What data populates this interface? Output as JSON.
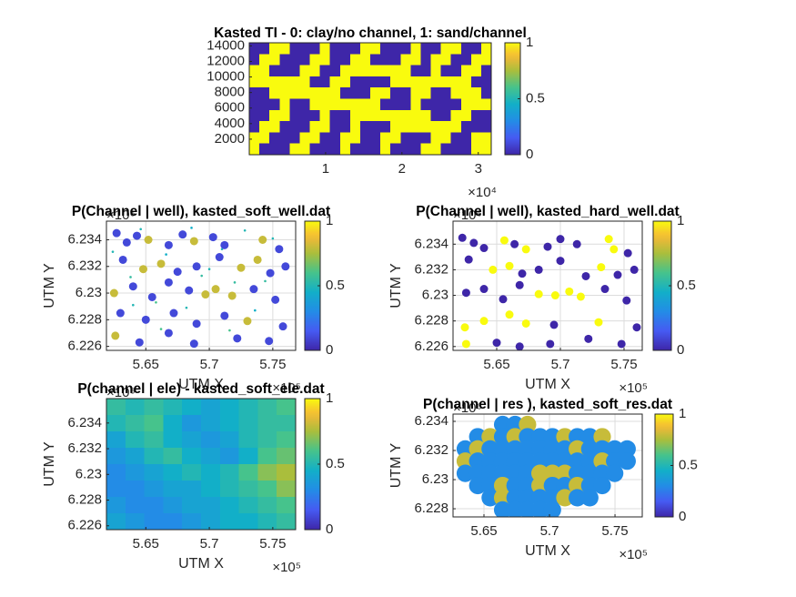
{
  "chart_data": [
    {
      "type": "heatmap",
      "title": "Kasted TI - 0: clay/no channel, 1: sand/channel",
      "colormap": "parula",
      "grid": false,
      "xlim": [
        0,
        3.17
      ],
      "ylim": [
        0,
        14400
      ],
      "xticks": [
        1,
        2,
        3
      ],
      "yticks": [
        2000,
        4000,
        6000,
        8000,
        10000,
        12000,
        14000
      ],
      "x_exponent": "×10⁴",
      "clim": [
        0,
        1
      ],
      "cticks": [
        0,
        0.5,
        1
      ],
      "z": [
        [
          0,
          0,
          1,
          1,
          0,
          0,
          0,
          1,
          0,
          0,
          0,
          1,
          1,
          0,
          0,
          0,
          1,
          0,
          0,
          1,
          1,
          0,
          0,
          1
        ],
        [
          0,
          1,
          1,
          0,
          0,
          0,
          1,
          1,
          0,
          0,
          1,
          1,
          0,
          0,
          0,
          1,
          1,
          0,
          1,
          1,
          0,
          0,
          1,
          1
        ],
        [
          1,
          1,
          0,
          0,
          0,
          1,
          1,
          0,
          0,
          1,
          1,
          1,
          1,
          1,
          1,
          1,
          0,
          0,
          1,
          0,
          0,
          1,
          1,
          0
        ],
        [
          1,
          1,
          1,
          1,
          1,
          1,
          0,
          0,
          1,
          1,
          0,
          0,
          0,
          0,
          1,
          1,
          1,
          1,
          1,
          1,
          1,
          1,
          0,
          0
        ],
        [
          0,
          0,
          1,
          1,
          1,
          1,
          1,
          1,
          1,
          0,
          0,
          0,
          1,
          1,
          0,
          0,
          1,
          1,
          0,
          0,
          1,
          1,
          1,
          0
        ],
        [
          0,
          0,
          0,
          1,
          0,
          0,
          1,
          1,
          1,
          1,
          1,
          1,
          1,
          0,
          0,
          0,
          1,
          0,
          0,
          0,
          0,
          1,
          1,
          1
        ],
        [
          0,
          0,
          1,
          1,
          0,
          0,
          0,
          1,
          0,
          0,
          1,
          1,
          1,
          1,
          1,
          1,
          1,
          1,
          0,
          0,
          1,
          1,
          0,
          0
        ],
        [
          0,
          1,
          1,
          0,
          0,
          0,
          1,
          1,
          0,
          0,
          1,
          0,
          0,
          0,
          1,
          1,
          1,
          1,
          1,
          1,
          1,
          0,
          0,
          0
        ],
        [
          1,
          1,
          0,
          0,
          0,
          1,
          1,
          0,
          0,
          1,
          1,
          0,
          0,
          1,
          1,
          0,
          0,
          0,
          1,
          1,
          0,
          0,
          1,
          1
        ],
        [
          1,
          0,
          0,
          0,
          1,
          1,
          0,
          0,
          0,
          1,
          0,
          0,
          0,
          1,
          0,
          0,
          0,
          1,
          1,
          0,
          0,
          0,
          1,
          1
        ]
      ]
    },
    {
      "type": "scatter",
      "title": "P(Channel | well), kasted_soft_well.dat",
      "colormap": "parula",
      "grid": true,
      "xlabel": "UTM X",
      "ylabel": "UTM Y",
      "x_exponent": "×10⁵",
      "y_exponent": "×10⁶",
      "xlim": [
        5.619,
        5.768
      ],
      "ylim": [
        6.2257,
        6.2354
      ],
      "xticks": [
        5.65,
        5.7,
        5.75
      ],
      "yticks": [
        6.226,
        6.228,
        6.23,
        6.232,
        6.234
      ],
      "clim": [
        0,
        1
      ],
      "cticks": [
        0,
        0.5,
        1
      ],
      "points": {
        "x": [
          5.627,
          5.635,
          5.643,
          5.652,
          5.668,
          5.679,
          5.688,
          5.703,
          5.712,
          5.742,
          5.755,
          5.76,
          5.632,
          5.648,
          5.662,
          5.675,
          5.69,
          5.708,
          5.725,
          5.738,
          5.748,
          5.625,
          5.64,
          5.655,
          5.668,
          5.684,
          5.697,
          5.705,
          5.718,
          5.735,
          5.752,
          5.63,
          5.65,
          5.672,
          5.69,
          5.712,
          5.73,
          5.758,
          5.626,
          5.645,
          5.668,
          5.688,
          5.722,
          5.747
        ],
        "y": [
          6.2345,
          6.2338,
          6.2343,
          6.234,
          6.2336,
          6.2344,
          6.2339,
          6.2342,
          6.2336,
          6.234,
          6.2333,
          6.232,
          6.2325,
          6.2318,
          6.2322,
          6.2316,
          6.232,
          6.2327,
          6.2319,
          6.2325,
          6.2315,
          6.23,
          6.2305,
          6.2297,
          6.2308,
          6.2302,
          6.2299,
          6.2303,
          6.2298,
          6.2303,
          6.2295,
          6.2285,
          6.228,
          6.2285,
          6.2277,
          6.2283,
          6.2279,
          6.2275,
          6.2268,
          6.2263,
          6.227,
          6.2262,
          6.2266,
          6.2264
        ],
        "values": [
          0.1,
          0.1,
          0.1,
          0.8,
          0.1,
          0.1,
          0.8,
          0.1,
          0.1,
          0.8,
          0.1,
          0.1,
          0.1,
          0.8,
          0.8,
          0.1,
          0.1,
          0.1,
          0.8,
          0.8,
          0.1,
          0.8,
          0.1,
          0.1,
          0.1,
          0.1,
          0.8,
          0.8,
          0.8,
          0.1,
          0.1,
          0.1,
          0.1,
          0.1,
          0.1,
          0.1,
          0.8,
          0.1,
          0.8,
          0.1,
          0.1,
          0.1,
          0.1,
          0.1
        ]
      },
      "small_points": {
        "x": [
          5.624,
          5.638,
          5.646,
          5.658,
          5.666,
          5.682,
          5.694,
          5.71,
          5.716,
          5.728,
          5.736,
          5.744,
          5.75,
          5.662,
          5.7,
          5.72,
          5.64,
          5.686
        ],
        "y": [
          6.2331,
          6.2312,
          6.2348,
          6.2293,
          6.2329,
          6.2289,
          6.2313,
          6.2333,
          6.2272,
          6.2347,
          6.2287,
          6.2309,
          6.2341,
          6.2273,
          6.2318,
          6.2308,
          6.2291,
          6.2349
        ],
        "values": [
          0.5,
          0.55,
          0.5,
          0.6,
          0.45,
          0.5,
          0.55,
          0.5,
          0.6,
          0.5,
          0.45,
          0.55,
          0.5,
          0.6,
          0.5,
          0.55,
          0.5,
          0.45
        ]
      }
    },
    {
      "type": "scatter",
      "title": "P(Channel | well), kasted_hard_well.dat",
      "colormap": "parula",
      "grid": true,
      "xlabel": "UTM X",
      "ylabel": "UTM Y",
      "x_exponent": "×10⁵",
      "y_exponent": "×10⁶",
      "xlim": [
        5.6157,
        5.7643
      ],
      "ylim": [
        6.2257,
        6.2358
      ],
      "xticks": [
        5.65,
        5.7,
        5.75
      ],
      "yticks": [
        6.226,
        6.228,
        6.23,
        6.232,
        6.234
      ],
      "clim": [
        0,
        1
      ],
      "cticks": [
        0,
        0.5,
        1
      ],
      "points": {
        "x": [
          5.623,
          5.632,
          5.64,
          5.656,
          5.664,
          5.673,
          5.69,
          5.7,
          5.713,
          5.738,
          5.742,
          5.753,
          5.758,
          5.628,
          5.647,
          5.66,
          5.67,
          5.683,
          5.7,
          5.72,
          5.732,
          5.745,
          5.626,
          5.64,
          5.655,
          5.668,
          5.683,
          5.696,
          5.707,
          5.716,
          5.735,
          5.752,
          5.625,
          5.64,
          5.66,
          5.673,
          5.695,
          5.73,
          5.76,
          5.626,
          5.65,
          5.668,
          5.692,
          5.722,
          5.748
        ],
        "y": [
          6.2345,
          6.2341,
          6.2337,
          6.2343,
          6.234,
          6.2336,
          6.2338,
          6.2344,
          6.234,
          6.2344,
          6.2336,
          6.2333,
          6.232,
          6.2328,
          6.232,
          6.2323,
          6.2317,
          6.232,
          6.2327,
          6.2315,
          6.2322,
          6.2316,
          6.2302,
          6.2305,
          6.2297,
          6.2308,
          6.2301,
          6.23,
          6.2303,
          6.2299,
          6.2305,
          6.2296,
          6.2275,
          6.228,
          6.2285,
          6.2278,
          6.2277,
          6.2279,
          6.2275,
          6.2262,
          6.2263,
          6.226,
          6.2262,
          6.2266,
          6.2262
        ],
        "values": [
          0,
          0,
          0,
          1,
          0,
          1,
          0,
          0,
          0,
          1,
          1,
          0,
          0,
          0,
          1,
          1,
          0,
          0,
          0,
          0,
          1,
          0,
          0,
          0,
          0,
          0,
          1,
          1,
          1,
          1,
          0,
          0,
          1,
          1,
          1,
          1,
          0,
          1,
          0,
          1,
          0,
          0,
          0,
          0,
          0
        ]
      }
    },
    {
      "type": "heatmap",
      "title": "P(channel | ele) - kasted_soft_ele.dat",
      "colormap": "parula",
      "grid": false,
      "xlabel": "UTM X",
      "ylabel": "UTM Y",
      "x_exponent": "×10⁵",
      "y_exponent": "×10⁶",
      "xlim": [
        5.619,
        5.768
      ],
      "ylim": [
        6.2257,
        6.2359
      ],
      "xticks": [
        5.65,
        5.7,
        5.75
      ],
      "yticks": [
        6.226,
        6.228,
        6.23,
        6.232,
        6.234
      ],
      "clim": [
        0,
        1
      ],
      "cticks": [
        0,
        0.5,
        1
      ],
      "z": [
        [
          0.55,
          0.5,
          0.55,
          0.5,
          0.45,
          0.4,
          0.45,
          0.5,
          0.55,
          0.6
        ],
        [
          0.5,
          0.55,
          0.6,
          0.45,
          0.35,
          0.4,
          0.45,
          0.5,
          0.55,
          0.55
        ],
        [
          0.4,
          0.5,
          0.55,
          0.45,
          0.4,
          0.35,
          0.4,
          0.5,
          0.55,
          0.6
        ],
        [
          0.35,
          0.4,
          0.5,
          0.55,
          0.45,
          0.4,
          0.35,
          0.45,
          0.6,
          0.65
        ],
        [
          0.3,
          0.35,
          0.4,
          0.45,
          0.5,
          0.45,
          0.5,
          0.6,
          0.7,
          0.75
        ],
        [
          0.3,
          0.3,
          0.35,
          0.4,
          0.4,
          0.45,
          0.5,
          0.55,
          0.6,
          0.7
        ],
        [
          0.35,
          0.3,
          0.3,
          0.35,
          0.4,
          0.4,
          0.45,
          0.5,
          0.55,
          0.6
        ],
        [
          0.4,
          0.35,
          0.3,
          0.3,
          0.35,
          0.4,
          0.45,
          0.45,
          0.5,
          0.55
        ]
      ]
    },
    {
      "type": "heatmap",
      "title": "P(channel | res ), kasted_soft_res.dat",
      "colormap": "parula",
      "grid": true,
      "marker": "circle",
      "xlabel": "UTM X",
      "ylabel": "UTM Y",
      "x_exponent": "×10⁵",
      "y_exponent": "×10⁶",
      "xlim": [
        5.6264,
        5.7708
      ],
      "ylim": [
        6.22744,
        6.2345
      ],
      "xticks": [
        5.65,
        5.7,
        5.75
      ],
      "yticks": [
        6.228,
        6.23,
        6.232,
        6.234
      ],
      "x_extent": [
        5.631,
        5.764
      ],
      "y_extent": [
        6.2275,
        6.2342
      ],
      "clim": [
        0,
        1
      ],
      "cticks": [
        0,
        0.5,
        1
      ],
      "z": [
        [
          null,
          null,
          null,
          0.3,
          0.3,
          0.8,
          null,
          null,
          null,
          null,
          null,
          null,
          null,
          null
        ],
        [
          null,
          0.3,
          0.8,
          0.3,
          0.8,
          0.3,
          0.3,
          0.3,
          0.8,
          0.3,
          0.3,
          0.8,
          null,
          null
        ],
        [
          0.3,
          0.8,
          0.3,
          0.3,
          0.3,
          0.3,
          0.3,
          0.3,
          0.3,
          0.8,
          0.3,
          0.3,
          0.3,
          0.3
        ],
        [
          0.8,
          0.3,
          0.3,
          0.3,
          0.3,
          0.3,
          0.3,
          0.3,
          0.3,
          0.3,
          0.3,
          0.8,
          0.3,
          0.3
        ],
        [
          0.3,
          0.3,
          0.3,
          0.3,
          0.3,
          0.3,
          0.8,
          0.8,
          0.8,
          0.3,
          0.3,
          0.3,
          0.3,
          null
        ],
        [
          null,
          0.3,
          0.3,
          0.8,
          0.3,
          0.3,
          0.8,
          0.3,
          0.3,
          0.8,
          0.3,
          0.3,
          null,
          null
        ],
        [
          null,
          null,
          0.3,
          0.8,
          0.3,
          0.3,
          0.3,
          0.3,
          0.8,
          0.3,
          0.3,
          null,
          null,
          null
        ],
        [
          null,
          null,
          null,
          0.3,
          0.3,
          0.3,
          0.3,
          0.3,
          null,
          null,
          null,
          null,
          null,
          null
        ]
      ]
    }
  ]
}
